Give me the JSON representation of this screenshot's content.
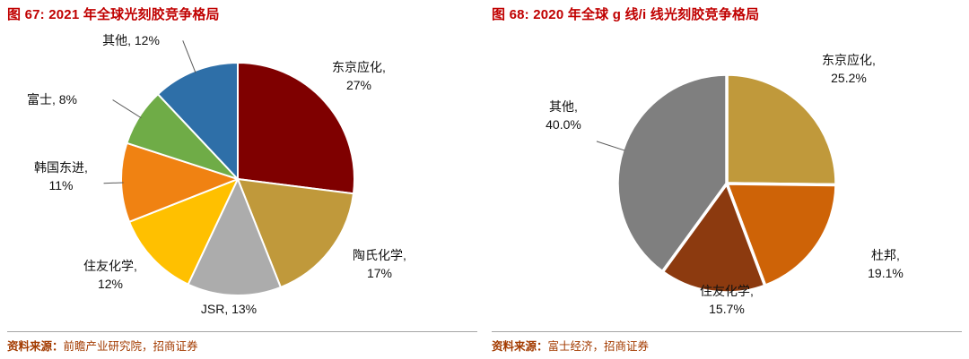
{
  "style": {
    "title_color": "#C00000",
    "source_color": "#A33B00",
    "leader_line_color": "#595959",
    "slice_border_color": "#FFFFFF"
  },
  "chart_data": [
    {
      "type": "pie",
      "title": "图 67:  2021 年全球光刻胶竞争格局",
      "source_label": "资料来源：",
      "source_text": "前瞻产业研究院，招商证券",
      "categories": [
        "东京应化",
        "陶氏化学",
        "JSR",
        "住友化学",
        "韩国东进",
        "富士",
        "其他"
      ],
      "values": [
        27,
        17,
        13,
        12,
        11,
        8,
        12
      ],
      "unit": "%",
      "colors": [
        "#7F0000",
        "#C0993B",
        "#ACACAC",
        "#FFC000",
        "#F08212",
        "#6FAC47",
        "#2E6FA8"
      ],
      "labels": [
        "东京应化,\n27%",
        "陶氏化学,\n17%",
        "JSR, 13%",
        "住友化学,\n12%",
        "韩国东进,\n11%",
        "富士, 8%",
        "其他, 12%"
      ],
      "start_angle_deg": 0,
      "direction": "clockwise",
      "legend": "none"
    },
    {
      "type": "pie",
      "title": "图 68:  2020 年全球 g 线/i 线光刻胶竞争格局",
      "source_label": "资料来源：",
      "source_text": "富士经济，招商证券",
      "categories": [
        "东京应化",
        "杜邦",
        "住友化学",
        "其他"
      ],
      "values": [
        25.2,
        19.1,
        15.7,
        40.0
      ],
      "unit": "%",
      "colors": [
        "#C0993B",
        "#CE6307",
        "#8C3A0F",
        "#7F7F7F"
      ],
      "labels": [
        "东京应化,\n25.2%",
        "杜邦,\n19.1%",
        "住友化学,\n15.7%",
        "其他,\n40.0%"
      ],
      "start_angle_deg": 0,
      "direction": "clockwise",
      "legend": "none"
    }
  ]
}
